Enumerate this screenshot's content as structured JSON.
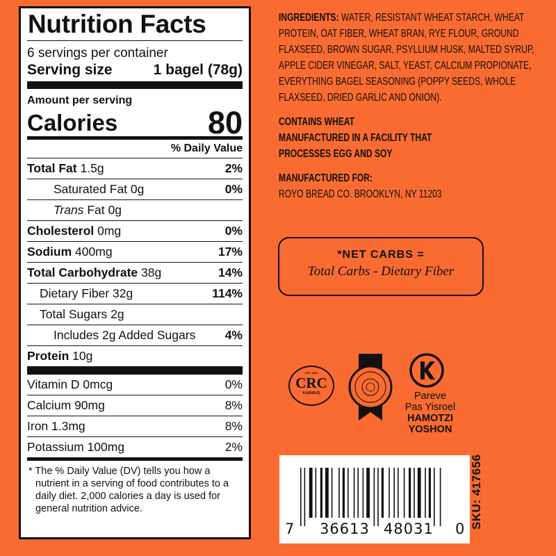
{
  "nutrition": {
    "title": "Nutrition Facts",
    "servings": "6 servings per container",
    "serving_size_label": "Serving size",
    "serving_size_value": "1 bagel (78g)",
    "amount_per_serving": "Amount per serving",
    "calories_label": "Calories",
    "calories_value": "80",
    "dv_header": "% Daily Value",
    "rows": [
      {
        "name": "Total Fat",
        "amount": "1.5g",
        "pct": "2%"
      },
      {
        "name": "Saturated Fat",
        "amount": "0g",
        "pct": "0%"
      },
      {
        "name": "Trans",
        "name2": "Fat",
        "amount": "0g",
        "pct": ""
      },
      {
        "name": "Cholesterol",
        "amount": "0mg",
        "pct": "0%"
      },
      {
        "name": "Sodium",
        "amount": "400mg",
        "pct": "17%"
      },
      {
        "name": "Total Carbohydrate",
        "amount": "38g",
        "pct": "14%"
      },
      {
        "name": "Dietary Fiber",
        "amount": "32g",
        "pct": "114%"
      },
      {
        "name": "Total Sugars",
        "amount": "2g",
        "pct": ""
      },
      {
        "name": "Includes 2g Added Sugars",
        "amount": "",
        "pct": "4%"
      },
      {
        "name": "Protein",
        "amount": "10g",
        "pct": ""
      }
    ],
    "vitamins": [
      {
        "name": "Vitamin D 0mcg",
        "pct": "0%"
      },
      {
        "name": "Calcium 90mg",
        "pct": "8%"
      },
      {
        "name": "Iron 1.3mg",
        "pct": "8%"
      },
      {
        "name": "Potassium 100mg",
        "pct": "2%"
      }
    ],
    "footnote": "* The % Daily Value (DV) tells you how a nutrient in a serving of food contributes to a daily diet. 2,000 calories a day is used for general nutrition advice."
  },
  "ingredients": {
    "label": "INGREDIENTS:",
    "text": "WATER, RESISTANT WHEAT STARCH, WHEAT PROTEIN, OAT FIBER, WHEAT BRAN, RYE FLOUR, GROUND FLAXSEED, BROWN SUGAR, PSYLLIUM HUSK, MALTED SYRUP, APPLE CIDER VINEGAR, SALT, YEAST, CALCIUM PROPIONATE, EVERYTHING BAGEL SEASONING (POPPY SEEDS, WHOLE FLAXSEED, DRIED GARLIC AND ONION).",
    "contains": "CONTAINS WHEAT",
    "facility_1": "MANUFACTURED IN A FACILITY THAT",
    "facility_2": "PROCESSES EGG AND SOY",
    "mfg_label": "MANUFACTURED FOR:",
    "mfg_value": "ROYO BREAD CO. BROOKLYN, NY 11203"
  },
  "net_carbs": {
    "title": "*NET CARBS =",
    "formula": "Total Carbs - Dietary Fiber"
  },
  "certifications": {
    "crc": {
      "top": "EST 1953",
      "main": "CRC",
      "bottom": "KASHRUS"
    },
    "ok_lines": [
      "Pareve",
      "Pas Yisroel",
      "HAMOTZI",
      "YOSHON"
    ]
  },
  "barcode": {
    "first": "7",
    "left": "36613",
    "right": "48031",
    "last": "0"
  },
  "sku": "SKU: 417656",
  "colors": {
    "background": "#f96b30",
    "ink": "#111111"
  }
}
